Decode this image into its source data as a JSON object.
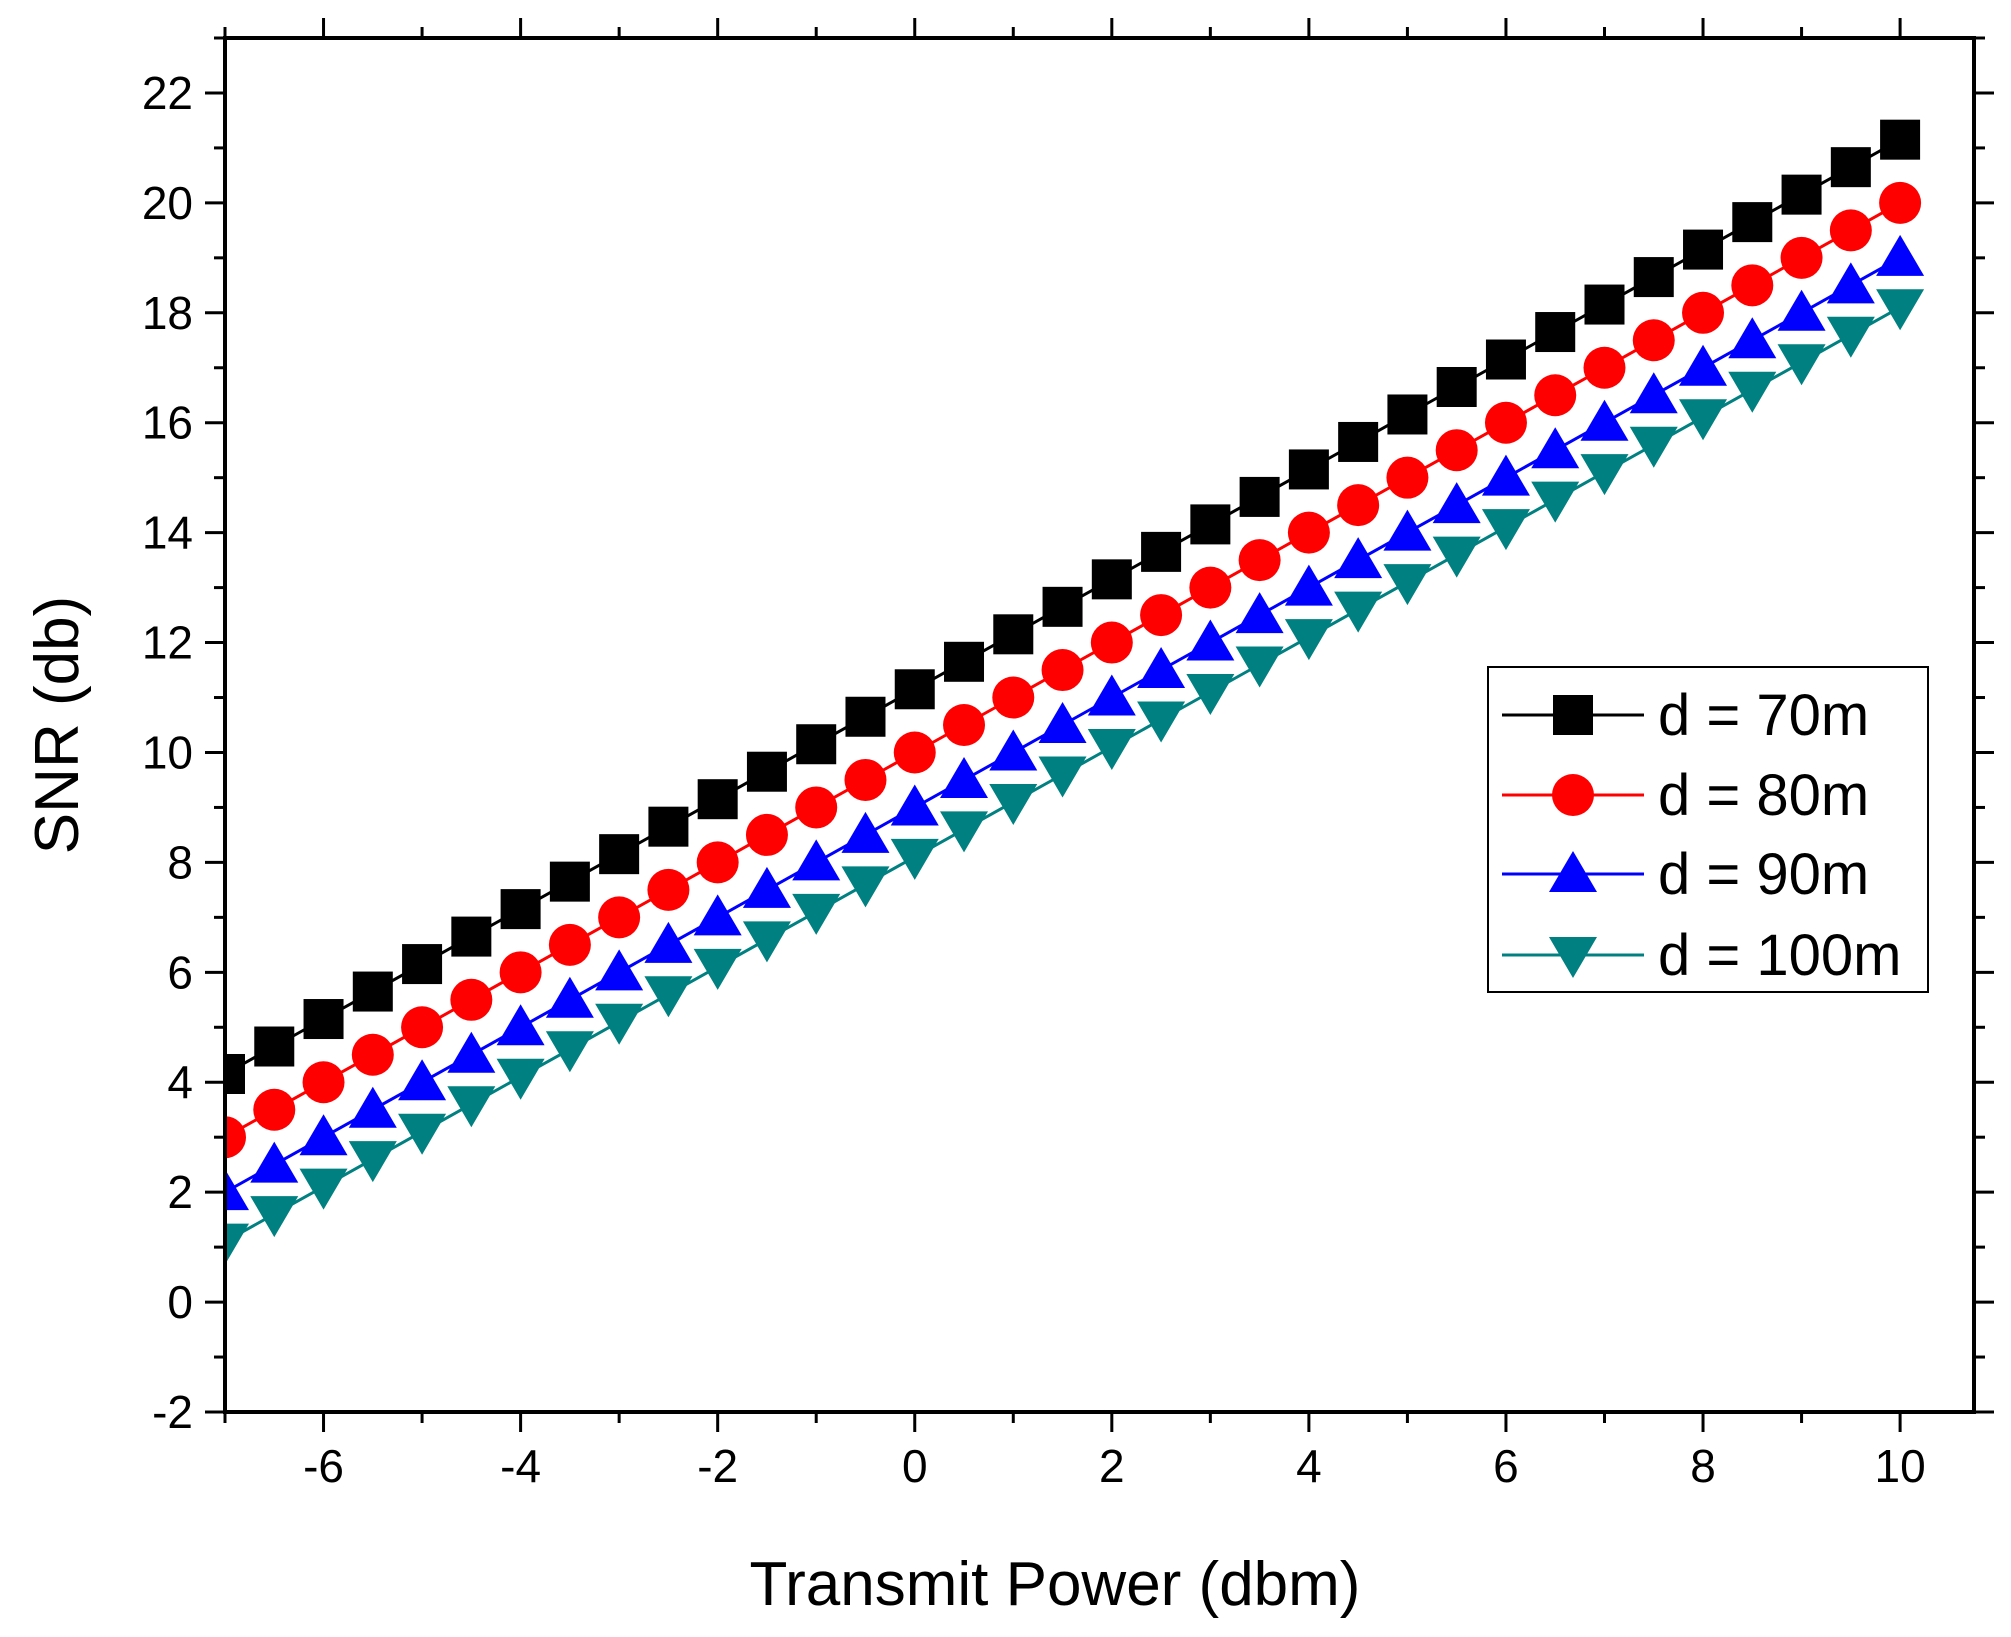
{
  "chart_data": {
    "type": "line",
    "title": "",
    "xlabel": "Transmit Power (dbm)",
    "ylabel": "SNR (db)",
    "xlim": [
      -7,
      10.75
    ],
    "ylim": [
      -2,
      23
    ],
    "x": [
      -7,
      -6.5,
      -6,
      -5.5,
      -5,
      -4.5,
      -4,
      -3.5,
      -3,
      -2.5,
      -2,
      -1.5,
      -1,
      -0.5,
      0,
      0.5,
      1,
      1.5,
      2,
      2.5,
      3,
      3.5,
      4,
      4.5,
      5,
      5.5,
      6,
      6.5,
      7,
      7.5,
      8,
      8.5,
      9,
      9.5,
      10
    ],
    "xticks": [
      -6,
      -4,
      -2,
      0,
      2,
      4,
      6,
      8,
      10
    ],
    "xtick_labels": [
      "-6",
      "-4",
      "-2",
      "0",
      "2",
      "4",
      "6",
      "8",
      "10"
    ],
    "yticks": [
      -2,
      0,
      2,
      4,
      6,
      8,
      10,
      12,
      14,
      16,
      18,
      20,
      22
    ],
    "ytick_labels": [
      "-2",
      "0",
      "2",
      "4",
      "6",
      "8",
      "10",
      "12",
      "14",
      "16",
      "18",
      "20",
      "22"
    ],
    "grid": false,
    "legend_position": "center-right",
    "series": [
      {
        "name": "d = 70m",
        "color": "#000000",
        "marker": "square",
        "values": [
          4.15,
          4.65,
          5.15,
          5.65,
          6.15,
          6.65,
          7.15,
          7.65,
          8.15,
          8.65,
          9.15,
          9.65,
          10.15,
          10.65,
          11.15,
          11.65,
          12.15,
          12.65,
          13.15,
          13.65,
          14.15,
          14.65,
          15.15,
          15.65,
          16.15,
          16.65,
          17.15,
          17.65,
          18.15,
          18.65,
          19.15,
          19.65,
          20.15,
          20.65,
          21.15
        ]
      },
      {
        "name": "d = 80m",
        "color": "#ff0000",
        "marker": "circle",
        "values": [
          3.0,
          3.5,
          4.0,
          4.5,
          5.0,
          5.5,
          6.0,
          6.5,
          7.0,
          7.5,
          8.0,
          8.5,
          9.0,
          9.5,
          10.0,
          10.5,
          11.0,
          11.5,
          12.0,
          12.5,
          13.0,
          13.5,
          14.0,
          14.5,
          15.0,
          15.5,
          16.0,
          16.5,
          17.0,
          17.5,
          18.0,
          18.5,
          19.0,
          19.5,
          20.0
        ]
      },
      {
        "name": "d = 90m",
        "color": "#0000ff",
        "marker": "triangle-up",
        "values": [
          2.0,
          2.5,
          3.0,
          3.5,
          4.0,
          4.5,
          5.0,
          5.5,
          6.0,
          6.5,
          7.0,
          7.5,
          8.0,
          8.5,
          9.0,
          9.5,
          10.0,
          10.5,
          11.0,
          11.5,
          12.0,
          12.5,
          13.0,
          13.5,
          14.0,
          14.5,
          15.0,
          15.5,
          16.0,
          16.5,
          17.0,
          17.5,
          18.0,
          18.5,
          19.0
        ]
      },
      {
        "name": "d = 100m",
        "color": "#008080",
        "marker": "triangle-down",
        "values": [
          1.1,
          1.6,
          2.1,
          2.6,
          3.1,
          3.6,
          4.1,
          4.6,
          5.1,
          5.6,
          6.1,
          6.6,
          7.1,
          7.6,
          8.1,
          8.6,
          9.1,
          9.6,
          10.1,
          10.6,
          11.1,
          11.6,
          12.1,
          12.6,
          13.1,
          13.6,
          14.1,
          14.6,
          15.1,
          15.6,
          16.1,
          16.6,
          17.1,
          17.6,
          18.1
        ]
      }
    ]
  }
}
